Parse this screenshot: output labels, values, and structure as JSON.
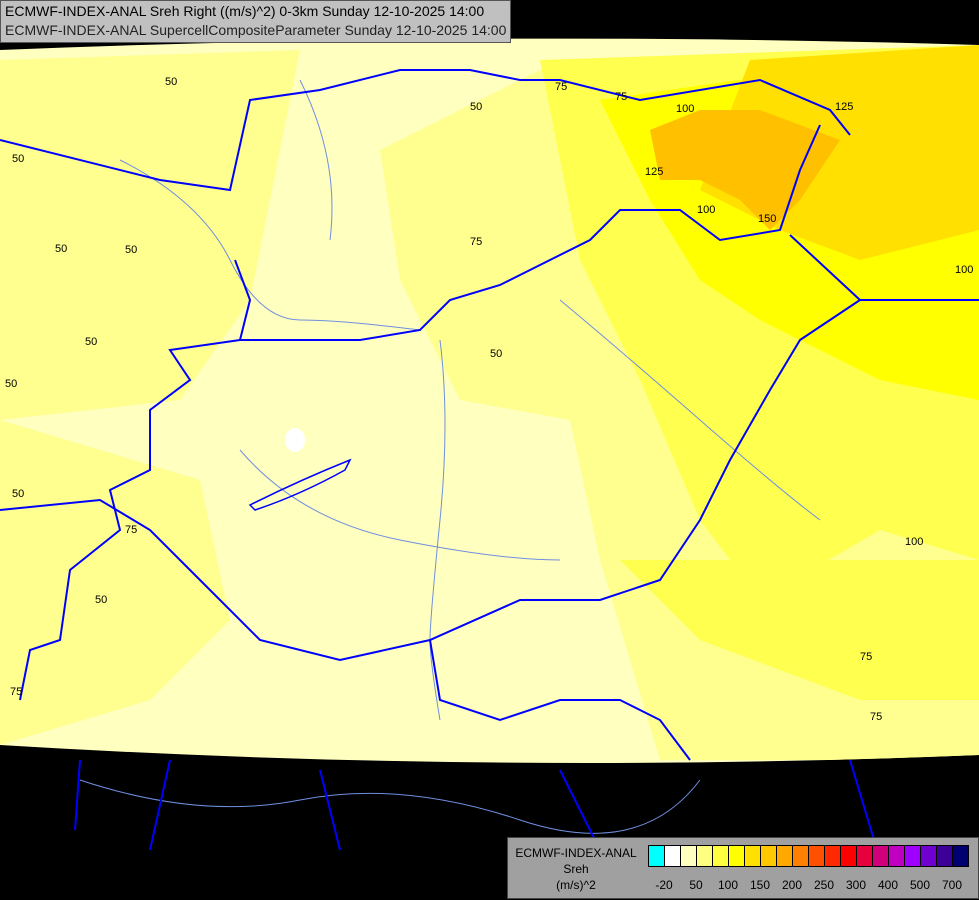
{
  "title": {
    "line1": "ECMWF-INDEX-ANAL Sreh Right ((m/s)^2) 0-3km Sunday 12-10-2025 14:00",
    "line2": "ECMWF-INDEX-ANAL SupercellCompositeParameter Sunday 12-10-2025 14:00"
  },
  "legend": {
    "model": "ECMWF-INDEX-ANAL",
    "variable": "Sreh",
    "unit": "(m/s)^2",
    "colors": [
      "#00ffff",
      "#ffffff",
      "#ffffc0",
      "#ffff80",
      "#ffff40",
      "#ffff00",
      "#ffe000",
      "#ffc800",
      "#ffa800",
      "#ff8000",
      "#ff5000",
      "#ff2800",
      "#ff0000",
      "#e8003c",
      "#d0007c",
      "#c000c0",
      "#a000ff",
      "#7000d0",
      "#3c0098",
      "#000070"
    ],
    "tick_labels": [
      "-20",
      "50",
      "100",
      "150",
      "200",
      "250",
      "300",
      "400",
      "500",
      "700"
    ]
  },
  "contour_labels": [
    "50",
    "50",
    "75",
    "75",
    "100",
    "125",
    "125",
    "100",
    "150",
    "100",
    "50",
    "75",
    "50",
    "50",
    "50",
    "50",
    "50",
    "75",
    "50",
    "75",
    "100",
    "50",
    "75",
    "75"
  ],
  "colors": {
    "border": "#0000ff",
    "river": "#6f8fe0",
    "background": "#000000"
  }
}
